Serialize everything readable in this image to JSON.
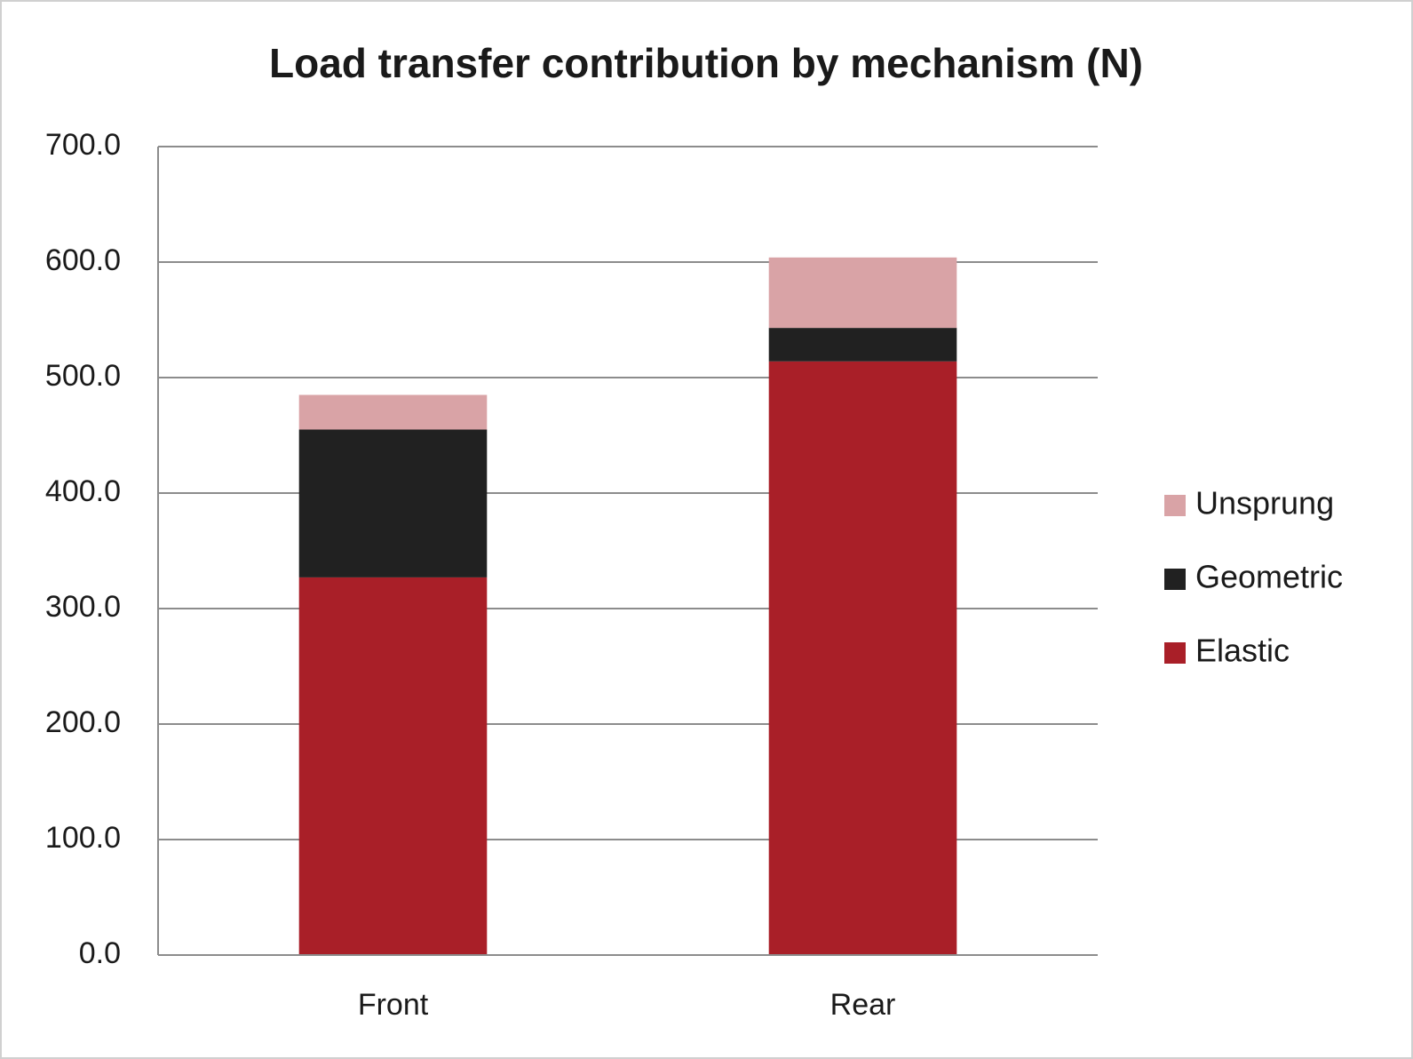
{
  "chart_data": {
    "type": "stacked_bar",
    "title": "Load transfer contribution by mechanism (N)",
    "categories": [
      "Front",
      "Rear"
    ],
    "series": [
      {
        "name": "Elastic",
        "color": "#a91f28",
        "values": [
          327,
          514
        ]
      },
      {
        "name": "Geometric",
        "color": "#212121",
        "values": [
          128,
          29
        ]
      },
      {
        "name": "Unsprung",
        "color": "#d9a3a6",
        "values": [
          30,
          61
        ]
      }
    ],
    "ylim": [
      0,
      700
    ],
    "yticks": [
      {
        "value": 0,
        "label": "0.0"
      },
      {
        "value": 100,
        "label": "100.0"
      },
      {
        "value": 200,
        "label": "200.0"
      },
      {
        "value": 300,
        "label": "300.0"
      },
      {
        "value": 400,
        "label": "400.0"
      },
      {
        "value": 500,
        "label": "500.0"
      },
      {
        "value": 600,
        "label": "600.0"
      },
      {
        "value": 700,
        "label": "700.0"
      }
    ],
    "grid": true,
    "legend": "right"
  }
}
